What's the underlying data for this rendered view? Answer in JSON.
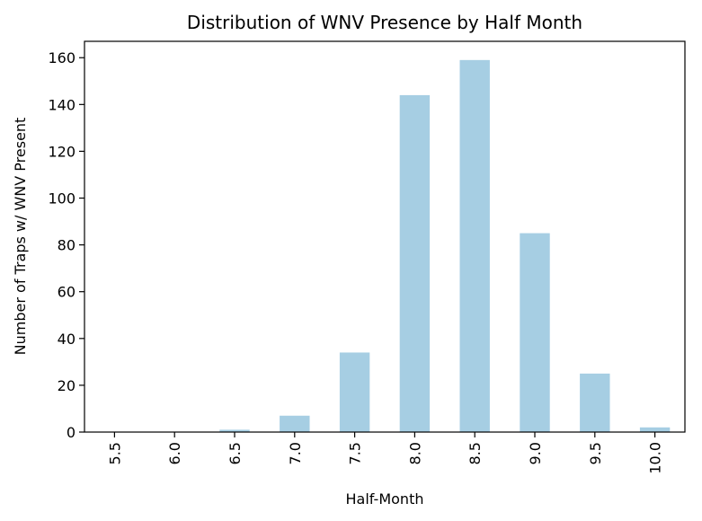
{
  "chart_data": {
    "type": "bar",
    "title": "Distribution of WNV Presence by Half Month",
    "xlabel": "Half-Month",
    "ylabel": "Number of Traps w/ WNV Present",
    "categories": [
      "5.5",
      "6.0",
      "6.5",
      "7.0",
      "7.5",
      "8.0",
      "8.5",
      "9.0",
      "9.5",
      "10.0"
    ],
    "values": [
      0,
      0,
      1,
      7,
      34,
      144,
      159,
      85,
      25,
      2
    ],
    "ylim": [
      0,
      167
    ],
    "yticks": [
      0,
      20,
      40,
      60,
      80,
      100,
      120,
      140,
      160
    ],
    "grid": false,
    "legend": "none",
    "bar_color": "#a6cee3"
  }
}
